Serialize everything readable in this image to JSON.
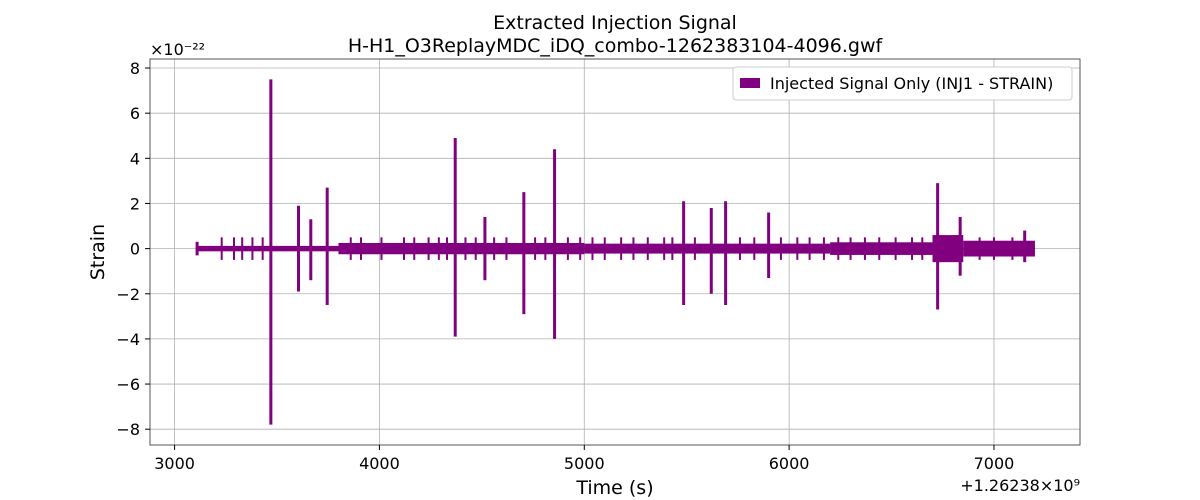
{
  "chart_data": {
    "type": "line",
    "title_line1": "Extracted Injection Signal",
    "title_line2": "H-H1_O3ReplayMDC_iDQ_combo-1262383104-4096.gwf",
    "xlabel": "Time (s)",
    "ylabel": "Strain",
    "x_offset_label": "+1.26238×10⁹",
    "y_scale_label": "×10⁻²²",
    "xlim": [
      2880,
      7420
    ],
    "ylim": [
      -8.7,
      8.4
    ],
    "x_ticks": [
      3000,
      4000,
      5000,
      6000,
      7000
    ],
    "x_tick_labels": [
      "3000",
      "4000",
      "5000",
      "6000",
      "7000"
    ],
    "y_ticks": [
      -8,
      -6,
      -4,
      -2,
      0,
      2,
      4,
      6,
      8
    ],
    "y_tick_labels": [
      "−8",
      "−6",
      "−4",
      "−2",
      "0",
      "2",
      "4",
      "6",
      "8"
    ],
    "grid": true,
    "legend_position": "top-right",
    "series": [
      {
        "name": "Injected Signal Only (INJ1 - STRAIN)",
        "color": "#800080",
        "x_range": [
          3104,
          7200
        ],
        "baseline_band": [
          {
            "x_start": 3104,
            "x_end": 3800,
            "amp": 0.12
          },
          {
            "x_start": 3800,
            "x_end": 5000,
            "amp": 0.25
          },
          {
            "x_start": 5000,
            "x_end": 6200,
            "amp": 0.22
          },
          {
            "x_start": 6200,
            "x_end": 6700,
            "amp": 0.28
          },
          {
            "x_start": 6700,
            "x_end": 6850,
            "amp": 0.6
          },
          {
            "x_start": 6850,
            "x_end": 7200,
            "amp": 0.35
          }
        ],
        "spikes": [
          {
            "x": 3110,
            "max": 0.3,
            "min": -0.3
          },
          {
            "x": 3470,
            "max": 7.5,
            "min": -7.8
          },
          {
            "x": 3605,
            "max": 1.9,
            "min": -1.9
          },
          {
            "x": 3665,
            "max": 1.3,
            "min": -1.4
          },
          {
            "x": 3745,
            "max": 2.7,
            "min": -2.5
          },
          {
            "x": 4370,
            "max": 4.9,
            "min": -3.9
          },
          {
            "x": 4515,
            "max": 1.4,
            "min": -1.4
          },
          {
            "x": 4705,
            "max": 2.5,
            "min": -2.9
          },
          {
            "x": 4855,
            "max": 4.4,
            "min": -4.0
          },
          {
            "x": 5485,
            "max": 2.1,
            "min": -2.5
          },
          {
            "x": 5620,
            "max": 1.8,
            "min": -2.0
          },
          {
            "x": 5690,
            "max": 2.1,
            "min": -2.5
          },
          {
            "x": 5900,
            "max": 1.6,
            "min": -1.3
          },
          {
            "x": 6725,
            "max": 2.9,
            "min": -2.7
          },
          {
            "x": 6835,
            "max": 1.4,
            "min": -1.2
          },
          {
            "x": 7150,
            "max": 0.8,
            "min": -0.6
          }
        ],
        "minor_spikes_x": [
          3230,
          3290,
          3330,
          3380,
          3430,
          3860,
          3910,
          4010,
          4120,
          4170,
          4240,
          4290,
          4330,
          4420,
          4470,
          4560,
          4620,
          4760,
          4810,
          4920,
          4980,
          5040,
          5100,
          5180,
          5240,
          5310,
          5390,
          5430,
          5540,
          5760,
          5830,
          5960,
          6040,
          6100,
          6170,
          6240,
          6300,
          6370,
          6440,
          6520,
          6600,
          6650,
          6930,
          7000,
          7090
        ],
        "minor_spike_amp": 0.5
      }
    ]
  }
}
